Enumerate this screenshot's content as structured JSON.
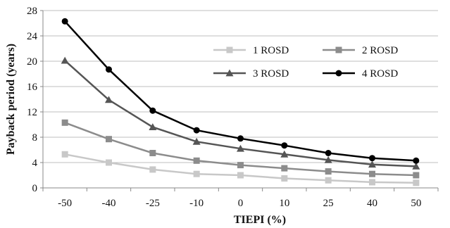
{
  "chart_data": {
    "type": "line",
    "title": "",
    "xlabel": "TIEPI (%)",
    "ylabel": "Payback period (years)",
    "x": [
      "-50",
      "-40",
      "-25",
      "-10",
      "0",
      "10",
      "25",
      "40",
      "50"
    ],
    "ylim": [
      0,
      28
    ],
    "yticks": [
      "0",
      "4",
      "8",
      "12",
      "16",
      "20",
      "24",
      "28"
    ],
    "grid": true,
    "legend_position": "right-inside",
    "series": [
      {
        "name": "1 ROSD",
        "marker": "square",
        "color": "#c8c8c8",
        "values": [
          5.3,
          4.0,
          2.9,
          2.2,
          2.0,
          1.5,
          1.2,
          0.9,
          0.8
        ]
      },
      {
        "name": "2 ROSD",
        "marker": "square",
        "color": "#8c8c8c",
        "values": [
          10.3,
          7.7,
          5.5,
          4.3,
          3.6,
          3.1,
          2.6,
          2.2,
          2.0
        ]
      },
      {
        "name": "3 ROSD",
        "marker": "triangle",
        "color": "#555555",
        "values": [
          20.1,
          13.9,
          9.6,
          7.3,
          6.2,
          5.3,
          4.4,
          3.7,
          3.4
        ]
      },
      {
        "name": "4 ROSD",
        "marker": "circle",
        "color": "#000000",
        "values": [
          26.3,
          18.7,
          12.2,
          9.1,
          7.8,
          6.7,
          5.5,
          4.7,
          4.3
        ]
      }
    ]
  }
}
